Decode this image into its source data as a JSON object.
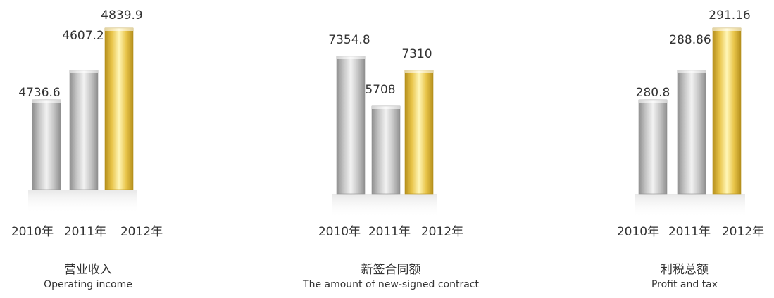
{
  "colors": {
    "silver_light": "#f2f2f2",
    "silver_mid": "#c6c6c6",
    "silver_dark": "#8f8f8f",
    "gold_light": "#fff6b8",
    "gold_mid": "#e9c54a",
    "gold_dark": "#b58f1c",
    "text": "#333333"
  },
  "chart_data": [
    {
      "type": "bar",
      "title_cn": "营业收入",
      "title_en": "Operating income",
      "categories": [
        "2010年",
        "2011年",
        "2012年"
      ],
      "values": [
        4736.6,
        4607.2,
        4839.9
      ],
      "value_labels": [
        "4736.6",
        "4607.2",
        "4839.9"
      ],
      "bar_colors": [
        "silver",
        "silver",
        "gold"
      ]
    },
    {
      "type": "bar",
      "title_cn": "新签合同额",
      "title_en": "The amount of new-signed contract",
      "categories": [
        "2010年",
        "2011年",
        "2012年"
      ],
      "values": [
        7354.8,
        5708,
        7310
      ],
      "value_labels": [
        "7354.8",
        "5708",
        "7310"
      ],
      "bar_colors": [
        "silver",
        "silver",
        "gold"
      ]
    },
    {
      "type": "bar",
      "title_cn": "利税总额",
      "title_en": "Profit and tax",
      "categories": [
        "2010年",
        "2011年",
        "2012年"
      ],
      "values": [
        280.8,
        288.86,
        291.16
      ],
      "value_labels": [
        "280.8",
        "288.86",
        "291.16"
      ],
      "bar_colors": [
        "silver",
        "silver",
        "gold"
      ]
    }
  ]
}
